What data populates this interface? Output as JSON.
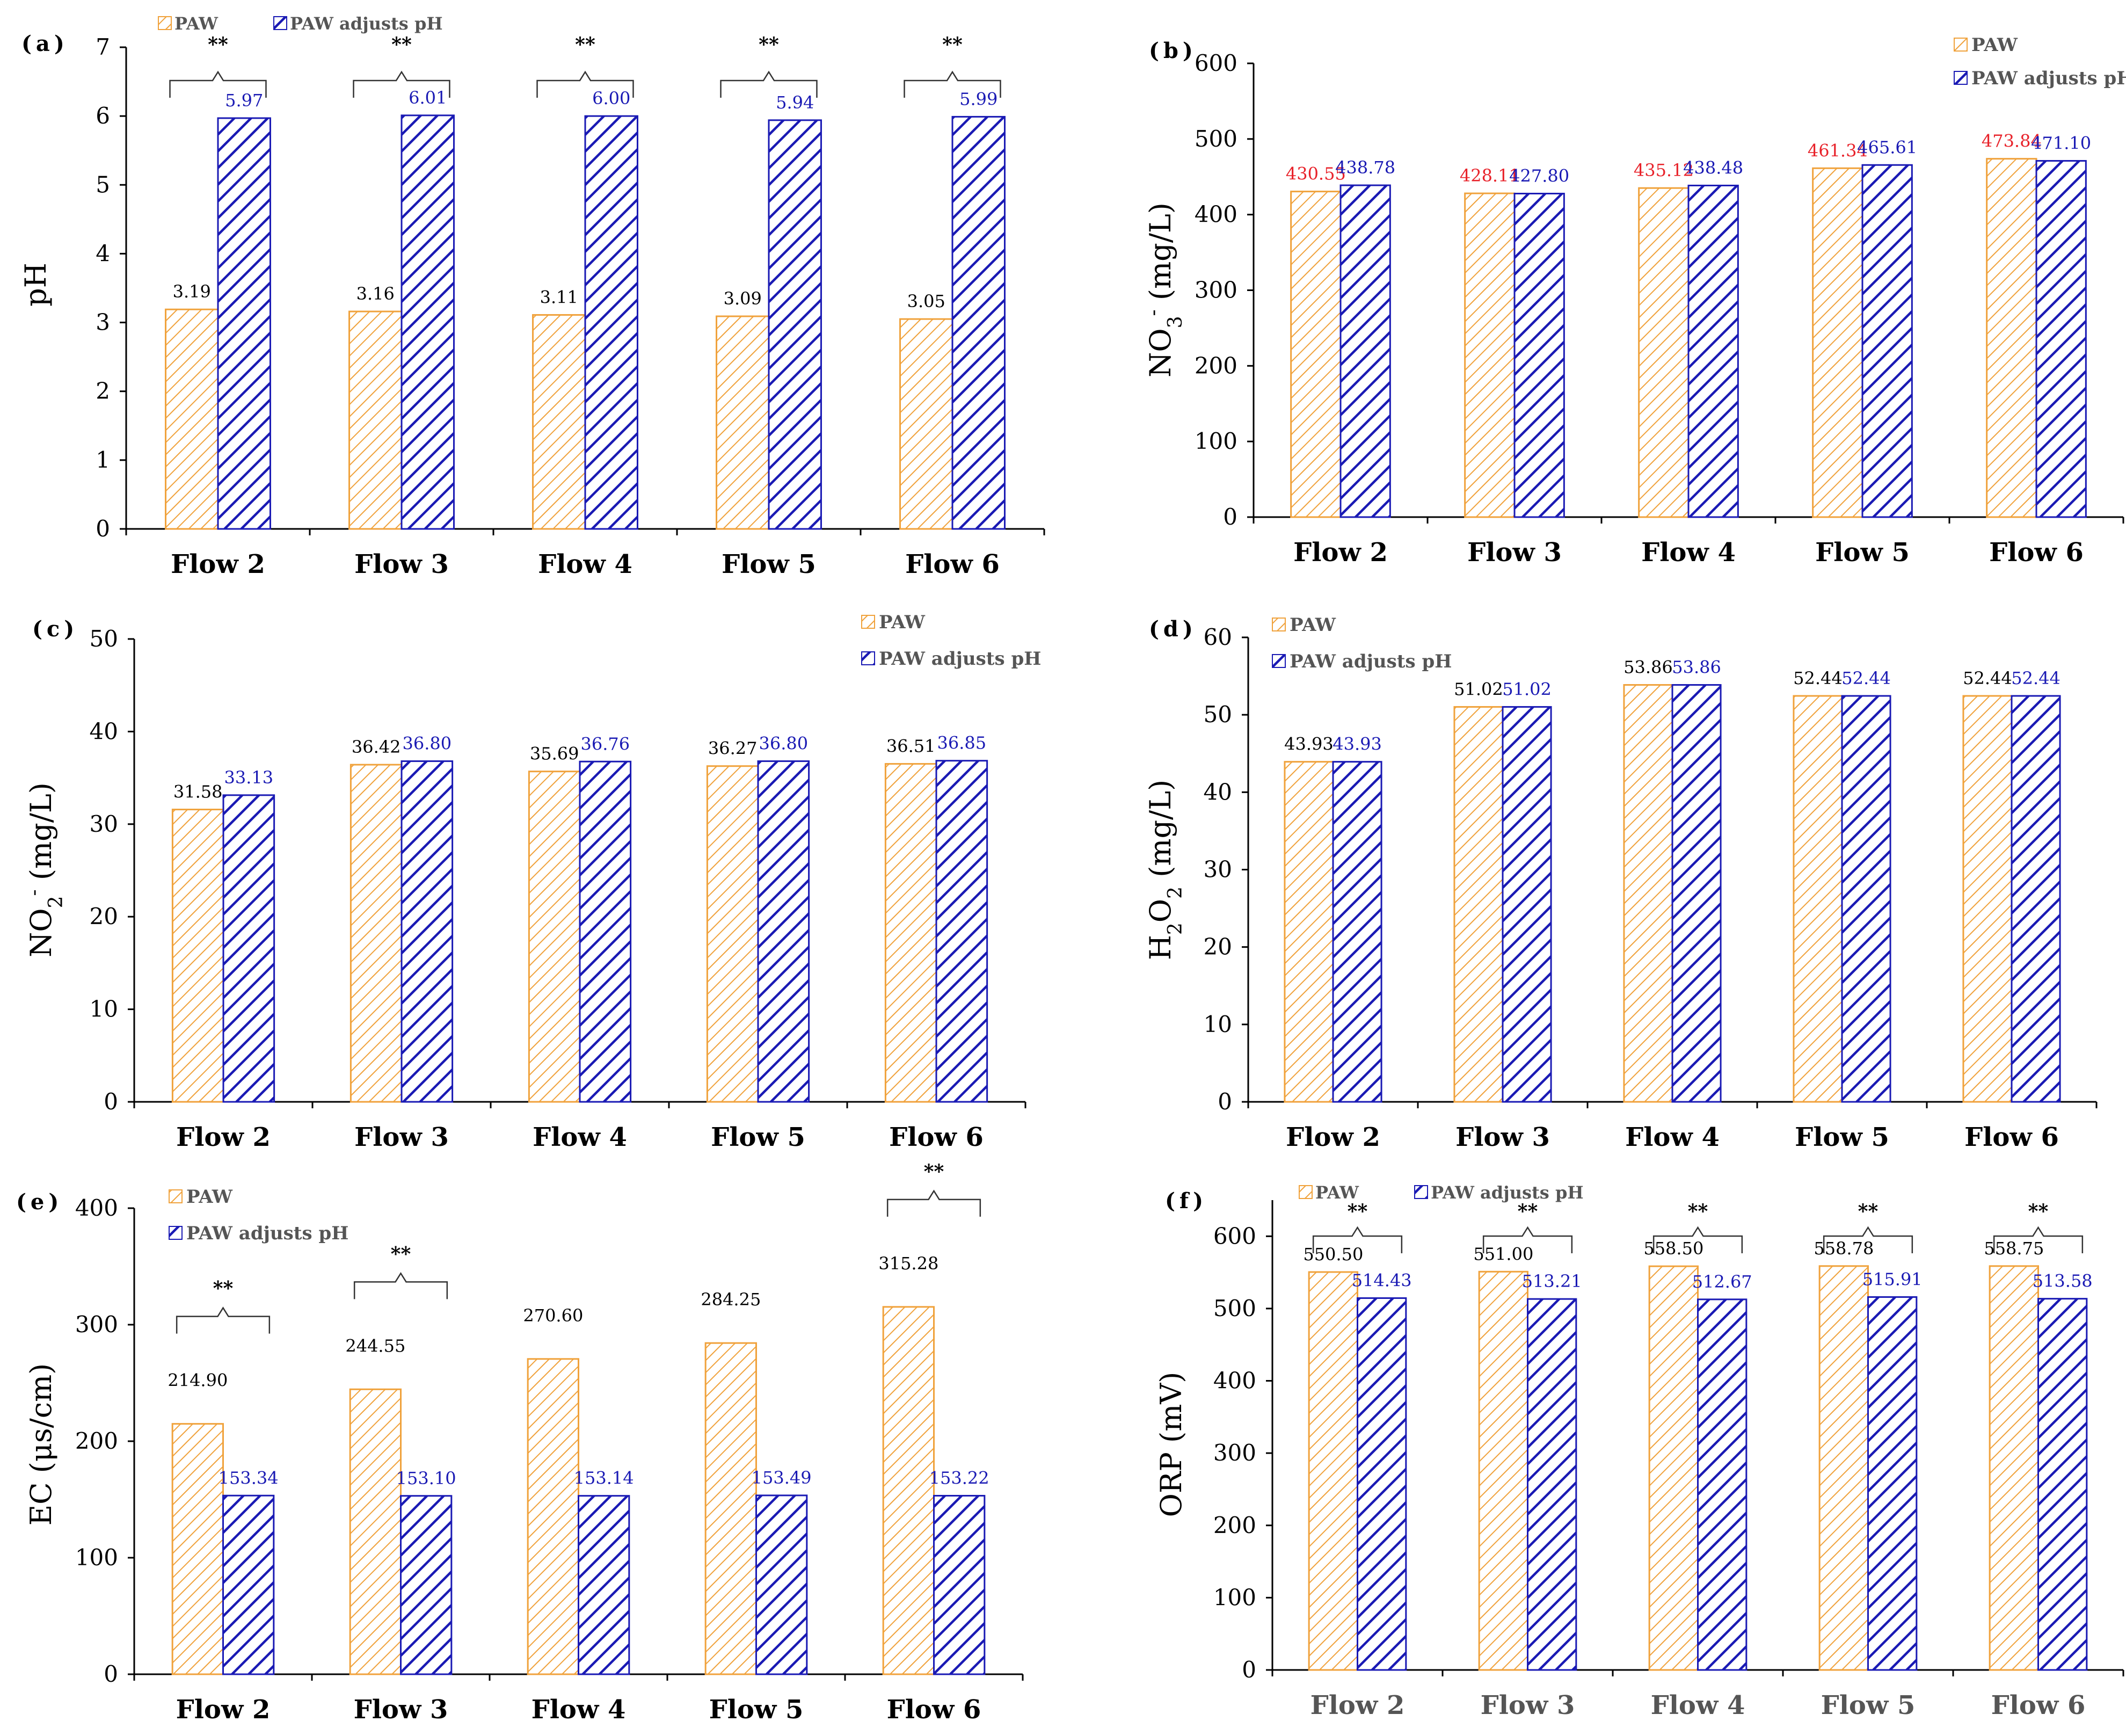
{
  "colors": {
    "paw": "#F0A23C",
    "adjusted": "#1A1AB4",
    "axis": "#000000",
    "paw_label_b": "#E8222A"
  },
  "chart_data": [
    {
      "id": "a",
      "panel_label": "(a)",
      "type": "bar",
      "ylabel": "pH",
      "ylim": [
        0,
        7
      ],
      "ytick_step": 1,
      "categories": [
        "Flow 2",
        "Flow 3",
        "Flow 4",
        "Flow 5",
        "Flow 6"
      ],
      "series": [
        {
          "name": "PAW",
          "values": [
            3.19,
            3.16,
            3.11,
            3.09,
            3.05
          ],
          "labels": [
            "3.19",
            "3.16",
            "3.11",
            "3.09",
            "3.05"
          ]
        },
        {
          "name": "PAW adjusts pH",
          "values": [
            5.97,
            6.01,
            6.0,
            5.94,
            5.99
          ],
          "labels": [
            "5.97",
            "6.01",
            "6.00",
            "5.94",
            "5.99"
          ]
        }
      ],
      "significance": [
        "**",
        "**",
        "**",
        "**",
        "**"
      ],
      "legend": {
        "placement": "top-left-inline",
        "paw": "PAW",
        "adjusted": "PAW adjusts pH"
      }
    },
    {
      "id": "b",
      "panel_label": "(b)",
      "type": "bar",
      "ylabel": "NO3- (mg/L)",
      "ylim": [
        0,
        600
      ],
      "ytick_step": 100,
      "categories": [
        "Flow 2",
        "Flow 3",
        "Flow 4",
        "Flow 5",
        "Flow 6"
      ],
      "series": [
        {
          "name": "PAW",
          "values": [
            430.55,
            428.11,
            435.12,
            461.34,
            473.84
          ],
          "labels": [
            "430.55",
            "428.11",
            "435.12",
            "461.34",
            "473.84"
          ]
        },
        {
          "name": "PAW adjusts pH",
          "values": [
            438.78,
            427.8,
            438.48,
            465.61,
            471.1
          ],
          "labels": [
            "438.78",
            "427.80",
            "438.48",
            "465.61",
            "471.10"
          ]
        }
      ],
      "significance": [],
      "legend": {
        "placement": "top-right",
        "paw": "PAW",
        "adjusted": "PAW adjusts pH"
      }
    },
    {
      "id": "c",
      "panel_label": "(c)",
      "type": "bar",
      "ylabel": "NO2- (mg/L)",
      "ylim": [
        0,
        50
      ],
      "ytick_step": 10,
      "categories": [
        "Flow 2",
        "Flow 3",
        "Flow 4",
        "Flow 5",
        "Flow 6"
      ],
      "series": [
        {
          "name": "PAW",
          "values": [
            31.58,
            36.42,
            35.69,
            36.27,
            36.51
          ],
          "labels": [
            "31.58",
            "36.42",
            "35.69",
            "36.27",
            "36.51"
          ]
        },
        {
          "name": "PAW adjusts pH",
          "values": [
            33.13,
            36.8,
            36.76,
            36.8,
            36.85
          ],
          "labels": [
            "33.13",
            "36.80",
            "36.76",
            "36.80",
            "36.85"
          ]
        }
      ],
      "significance": [],
      "legend": {
        "placement": "top-right",
        "paw": "PAW",
        "adjusted": "PAW adjusts pH"
      }
    },
    {
      "id": "d",
      "panel_label": "(d)",
      "type": "bar",
      "ylabel": "H2O2 (mg/L)",
      "ylim": [
        0,
        60
      ],
      "ytick_step": 10,
      "categories": [
        "Flow 2",
        "Flow 3",
        "Flow 4",
        "Flow 5",
        "Flow 6"
      ],
      "series": [
        {
          "name": "PAW",
          "values": [
            43.93,
            51.02,
            53.86,
            52.44,
            52.44
          ],
          "labels": [
            "43.93",
            "51.02",
            "53.86",
            "52.44",
            "52.44"
          ]
        },
        {
          "name": "PAW adjusts pH",
          "values": [
            43.93,
            51.02,
            53.86,
            52.44,
            52.44
          ],
          "labels": [
            "43.93",
            "51.02",
            "53.86",
            "52.44",
            "52.44"
          ]
        }
      ],
      "significance": [],
      "legend": {
        "placement": "top-left",
        "paw": "PAW",
        "adjusted": "PAW adjusts pH"
      }
    },
    {
      "id": "e",
      "panel_label": "(e)",
      "type": "bar",
      "ylabel": "EC (μs/cm)",
      "ylim": [
        0,
        400
      ],
      "ytick_step": 100,
      "categories": [
        "Flow 2",
        "Flow 3",
        "Flow 4",
        "Flow 5",
        "Flow 6"
      ],
      "series": [
        {
          "name": "PAW",
          "values": [
            214.9,
            244.55,
            270.6,
            284.25,
            315.28
          ],
          "labels": [
            "214.90",
            "244.55",
            "270.60",
            "284.25",
            "315.28"
          ]
        },
        {
          "name": "PAW adjusts pH",
          "values": [
            153.34,
            153.1,
            153.14,
            153.49,
            153.22
          ],
          "labels": [
            "153.34",
            "153.10",
            "153.14",
            "153.49",
            "153.22"
          ]
        }
      ],
      "significance": [
        "**",
        "**",
        "",
        "",
        "**"
      ],
      "legend": {
        "placement": "top-left",
        "paw": "PAW",
        "adjusted": "PAW adjusts pH"
      }
    },
    {
      "id": "f",
      "panel_label": "(f)",
      "type": "bar",
      "ylabel": "ORP (mV)",
      "ylim": [
        0,
        650
      ],
      "ytick_step": 100,
      "categories": [
        "Flow 2",
        "Flow 3",
        "Flow 4",
        "Flow 5",
        "Flow 6"
      ],
      "series": [
        {
          "name": "PAW",
          "values": [
            550.5,
            551.0,
            558.5,
            558.78,
            558.75
          ],
          "labels": [
            "550.50",
            "551.00",
            "558.50",
            "558.78",
            "558.75"
          ]
        },
        {
          "name": "PAW adjusts pH",
          "values": [
            514.43,
            513.21,
            512.67,
            515.91,
            513.58
          ],
          "labels": [
            "514.43",
            "513.21",
            "512.67",
            "515.91",
            "513.58"
          ]
        }
      ],
      "significance": [
        "**",
        "**",
        "**",
        "**",
        "**"
      ],
      "legend": {
        "placement": "top-left-inline",
        "paw": "PAW",
        "adjusted": "PAW adjusts pH"
      }
    }
  ]
}
